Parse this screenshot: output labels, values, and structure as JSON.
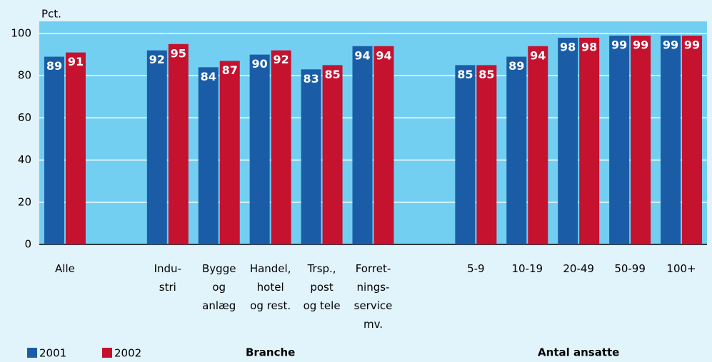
{
  "chart_data": {
    "type": "bar",
    "y_label": "Pct.",
    "categories": [
      "Alle",
      null,
      "Indu-\nstri",
      "Bygge\nog\nanlæg",
      "Handel,\nhotel\nog rest.",
      "Trsp.,\npost\nog tele",
      "Forret-\nnings-\nservice\nmv.",
      null,
      "5-9",
      "10-19",
      "20-49",
      "50-99",
      "100+"
    ],
    "series": [
      {
        "name": "2001",
        "color": "#1a5da6",
        "values": [
          89,
          null,
          92,
          84,
          90,
          83,
          94,
          null,
          85,
          89,
          98,
          99,
          99
        ]
      },
      {
        "name": "2002",
        "color": "#c4122f",
        "values": [
          91,
          null,
          95,
          87,
          92,
          85,
          94,
          null,
          85,
          94,
          98,
          99,
          99
        ]
      }
    ],
    "group_labels": [
      "Branche",
      "Antal ansatte"
    ],
    "ylim": [
      0,
      100
    ],
    "yticks": [
      0,
      20,
      40,
      60,
      80,
      100
    ],
    "grid": true,
    "legend": "bottom-left"
  }
}
